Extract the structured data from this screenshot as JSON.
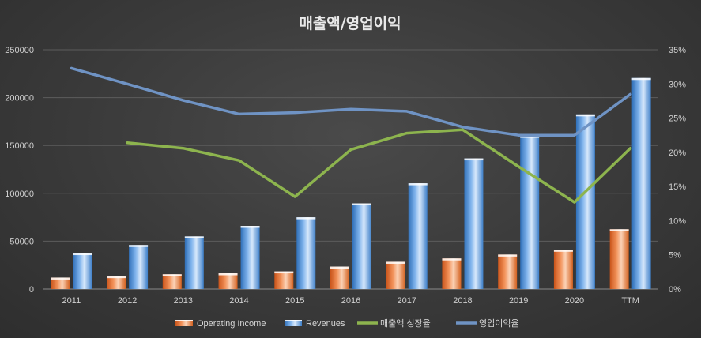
{
  "chart_data": {
    "type": "bar",
    "title": "매출액/영업이익",
    "categories": [
      "2011",
      "2012",
      "2013",
      "2014",
      "2015",
      "2016",
      "2017",
      "2018",
      "2019",
      "2020",
      "TTM"
    ],
    "series": [
      {
        "name": "Operating Income",
        "kind": "bar",
        "axis": "left",
        "color": "#ed7d31",
        "values": [
          12000,
          13500,
          15500,
          16500,
          18500,
          23500,
          28500,
          32000,
          36000,
          41000,
          62500
        ]
      },
      {
        "name": "Revenues",
        "kind": "bar",
        "axis": "left",
        "color": "#5b9bd5",
        "values": [
          37500,
          46000,
          55000,
          66000,
          75000,
          89500,
          110500,
          136500,
          160000,
          182500,
          220500
        ]
      },
      {
        "name": "매출액 성장율",
        "kind": "line",
        "axis": "right",
        "color": "#8db44e",
        "values": [
          null,
          21.4,
          20.6,
          18.8,
          13.5,
          20.4,
          22.8,
          23.3,
          17.9,
          12.7,
          20.6
        ]
      },
      {
        "name": "영업이익율",
        "kind": "line",
        "axis": "right",
        "color": "#6f93c4",
        "values": [
          32.3,
          30.0,
          27.6,
          25.6,
          25.8,
          26.3,
          26.0,
          23.7,
          22.5,
          22.5,
          28.5
        ]
      }
    ],
    "y_left": {
      "min": 0,
      "max": 250000,
      "step": 50000,
      "tick_labels": [
        "0",
        "50000",
        "100000",
        "150000",
        "200000",
        "250000"
      ]
    },
    "y_right": {
      "min": 0,
      "max": 35,
      "step": 5,
      "tick_labels": [
        "0%",
        "5%",
        "10%",
        "15%",
        "20%",
        "25%",
        "30%",
        "35%"
      ]
    },
    "grid": true,
    "legend_position": "bottom"
  }
}
